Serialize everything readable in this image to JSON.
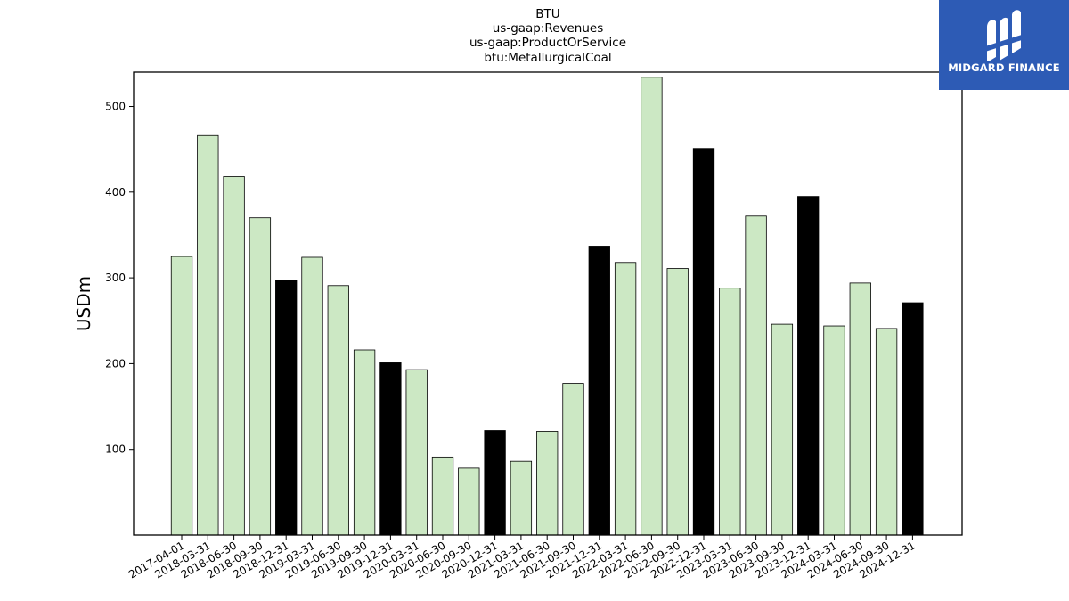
{
  "logo": {
    "text": "MIDGARD FINANCE",
    "icon": "midgard-logo-icon",
    "background": "#2d5bb5"
  },
  "chart_data": {
    "type": "bar",
    "title": [
      "BTU",
      "us-gaap:Revenues",
      "us-gaap:ProductOrService",
      "btu:MetallurgicalCoal"
    ],
    "xlabel": "",
    "ylabel": "USDm",
    "ylim": [
      0,
      540
    ],
    "yticks": [
      100,
      200,
      300,
      400,
      500
    ],
    "grid": false,
    "colors": {
      "quarter": "#cce8c4",
      "year_end": "#000000",
      "edge": "#000000"
    },
    "categories": [
      "2017-04-01",
      "2018-03-31",
      "2018-06-30",
      "2018-09-30",
      "2018-12-31",
      "2019-03-31",
      "2019-06-30",
      "2019-09-30",
      "2019-12-31",
      "2020-03-31",
      "2020-06-30",
      "2020-09-30",
      "2020-12-31",
      "2021-03-31",
      "2021-06-30",
      "2021-09-30",
      "2021-12-31",
      "2022-03-31",
      "2022-06-30",
      "2022-09-30",
      "2022-12-31",
      "2023-03-31",
      "2023-06-30",
      "2023-09-30",
      "2023-12-31",
      "2024-03-31",
      "2024-06-30",
      "2024-09-30",
      "2024-12-31"
    ],
    "values": [
      325,
      466,
      418,
      370,
      297,
      324,
      291,
      216,
      201,
      193,
      91,
      78,
      122,
      86,
      121,
      177,
      337,
      318,
      534,
      311,
      451,
      288,
      372,
      246,
      395,
      244,
      294,
      241,
      271
    ]
  }
}
